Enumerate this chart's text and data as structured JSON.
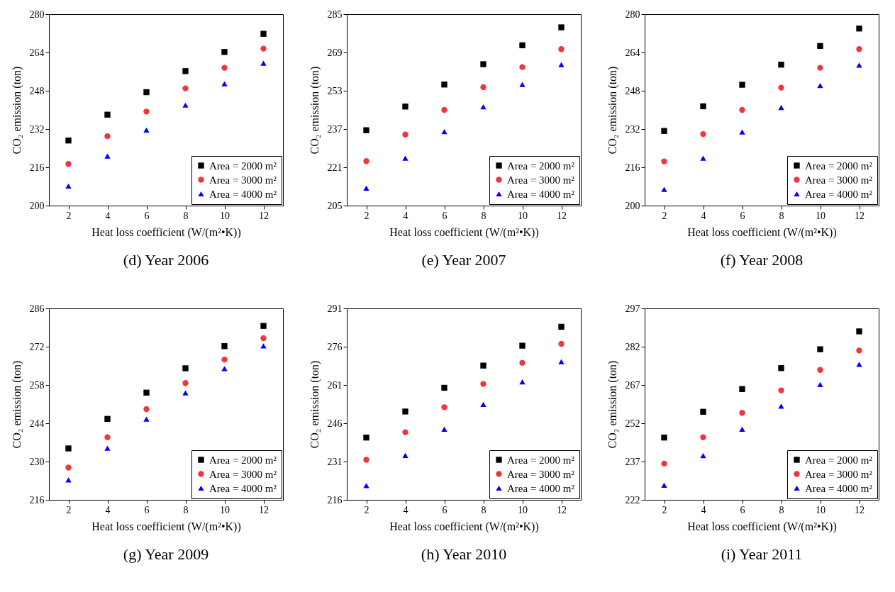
{
  "chart_data": [
    {
      "type": "scatter",
      "title": "(d) Year 2006",
      "xlabel": "Heat loss coefficient (W/(m²•K))",
      "ylabel": "CO₂ emission (ton)",
      "x": [
        2,
        4,
        6,
        8,
        10,
        12
      ],
      "xlim": [
        1,
        13
      ],
      "xticks": [
        2,
        4,
        6,
        8,
        10,
        12
      ],
      "ylim": [
        200,
        280
      ],
      "yticks": [
        200,
        216,
        232,
        248,
        264,
        280
      ],
      "grid": false,
      "legend": "bottom right",
      "series": [
        {
          "name": "Area = 2000 m²",
          "color": "#000000",
          "marker": "square",
          "values": [
            227.2,
            238.0,
            247.4,
            256.2,
            264.2,
            271.8
          ]
        },
        {
          "name": "Area = 3000 m²",
          "color": "#f0363b",
          "marker": "circle",
          "values": [
            217.4,
            229.0,
            239.3,
            249.0,
            257.6,
            265.6
          ]
        },
        {
          "name": "Area = 4000 m²",
          "color": "#0000ff",
          "marker": "triangle",
          "values": [
            208.2,
            220.7,
            231.6,
            242.0,
            250.9,
            259.5
          ]
        }
      ]
    },
    {
      "type": "scatter",
      "title": "(e) Year 2007",
      "xlabel": "Heat loss coefficient (W/(m²•K))",
      "ylabel": "CO₂ emission (ton)",
      "x": [
        2,
        4,
        6,
        8,
        10,
        12
      ],
      "xlim": [
        1,
        13
      ],
      "xticks": [
        2,
        4,
        6,
        8,
        10,
        12
      ],
      "ylim": [
        205,
        285
      ],
      "yticks": [
        205,
        221,
        237,
        253,
        269,
        285
      ],
      "grid": false,
      "legend": "bottom right",
      "series": [
        {
          "name": "Area = 2000 m²",
          "color": "#000000",
          "marker": "square",
          "values": [
            236.5,
            246.4,
            255.6,
            264.1,
            272.0,
            279.5
          ]
        },
        {
          "name": "Area = 3000 m²",
          "color": "#f0363b",
          "marker": "circle",
          "values": [
            223.6,
            234.7,
            245.0,
            254.5,
            262.9,
            270.4
          ]
        },
        {
          "name": "Area = 4000 m²",
          "color": "#0000ff",
          "marker": "triangle",
          "values": [
            212.3,
            224.8,
            235.9,
            246.3,
            255.6,
            263.9
          ]
        }
      ]
    },
    {
      "type": "scatter",
      "title": "(f) Year 2008",
      "xlabel": "Heat loss coefficient (W/(m²•K))",
      "ylabel": "CO₂ emission (ton)",
      "x": [
        2,
        4,
        6,
        8,
        10,
        12
      ],
      "xlim": [
        1,
        13
      ],
      "xticks": [
        2,
        4,
        6,
        8,
        10,
        12
      ],
      "ylim": [
        200,
        280
      ],
      "yticks": [
        200,
        216,
        232,
        248,
        264,
        280
      ],
      "grid": false,
      "legend": "bottom right",
      "series": [
        {
          "name": "Area = 2000 m²",
          "color": "#000000",
          "marker": "square",
          "values": [
            231.2,
            241.5,
            250.5,
            258.9,
            266.7,
            274.0
          ]
        },
        {
          "name": "Area = 3000 m²",
          "color": "#f0363b",
          "marker": "circle",
          "values": [
            218.5,
            229.9,
            240.0,
            249.3,
            257.6,
            265.4
          ]
        },
        {
          "name": "Area = 4000 m²",
          "color": "#0000ff",
          "marker": "triangle",
          "values": [
            206.8,
            219.8,
            230.8,
            241.0,
            250.2,
            258.7
          ]
        }
      ]
    },
    {
      "type": "scatter",
      "title": "(g) Year 2009",
      "xlabel": "Heat loss coefficient (W/(m²•K))",
      "ylabel": "CO₂ emission (ton)",
      "x": [
        2,
        4,
        6,
        8,
        10,
        12
      ],
      "xlim": [
        1,
        13
      ],
      "xticks": [
        2,
        4,
        6,
        8,
        10,
        12
      ],
      "ylim": [
        216,
        286
      ],
      "yticks": [
        216,
        230,
        244,
        258,
        272,
        286
      ],
      "grid": false,
      "legend": "bottom right",
      "series": [
        {
          "name": "Area = 2000 m²",
          "color": "#000000",
          "marker": "square",
          "values": [
            234.8,
            245.6,
            255.2,
            264.1,
            272.2,
            279.6
          ]
        },
        {
          "name": "Area = 3000 m²",
          "color": "#f0363b",
          "marker": "circle",
          "values": [
            227.8,
            238.9,
            249.2,
            258.7,
            267.3,
            275.1
          ]
        },
        {
          "name": "Area = 4000 m²",
          "color": "#0000ff",
          "marker": "triangle",
          "values": [
            223.3,
            234.9,
            245.5,
            255.1,
            264.0,
            272.3
          ]
        }
      ]
    },
    {
      "type": "scatter",
      "title": "(h) Year 2010",
      "xlabel": "Heat loss coefficient (W/(m²•K))",
      "ylabel": "CO₂ emission (ton)",
      "x": [
        2,
        4,
        6,
        8,
        10,
        12
      ],
      "xlim": [
        1,
        13
      ],
      "xticks": [
        2,
        4,
        6,
        8,
        10,
        12
      ],
      "ylim": [
        216,
        291
      ],
      "yticks": [
        216,
        231,
        246,
        261,
        276,
        291
      ],
      "grid": false,
      "legend": "bottom right",
      "series": [
        {
          "name": "Area = 2000 m²",
          "color": "#000000",
          "marker": "square",
          "values": [
            240.4,
            250.6,
            259.9,
            268.6,
            276.4,
            283.8
          ]
        },
        {
          "name": "Area = 3000 m²",
          "color": "#f0363b",
          "marker": "circle",
          "values": [
            231.7,
            242.5,
            252.3,
            261.4,
            269.7,
            277.1
          ]
        },
        {
          "name": "Area = 4000 m²",
          "color": "#0000ff",
          "marker": "triangle",
          "values": [
            221.6,
            233.4,
            243.7,
            253.4,
            262.2,
            270.1
          ]
        }
      ]
    },
    {
      "type": "scatter",
      "title": "(i) Year 2011",
      "xlabel": "Heat loss coefficient (W/(m²•K))",
      "ylabel": "CO₂ emission (ton)",
      "x": [
        2,
        4,
        6,
        8,
        10,
        12
      ],
      "xlim": [
        1,
        13
      ],
      "xticks": [
        2,
        4,
        6,
        8,
        10,
        12
      ],
      "ylim": [
        222,
        297
      ],
      "yticks": [
        222,
        237,
        252,
        267,
        282,
        297
      ],
      "grid": false,
      "legend": "bottom right",
      "series": [
        {
          "name": "Area = 2000 m²",
          "color": "#000000",
          "marker": "square",
          "values": [
            246.4,
            256.5,
            265.4,
            273.6,
            281.0,
            288.0
          ]
        },
        {
          "name": "Area = 3000 m²",
          "color": "#f0363b",
          "marker": "circle",
          "values": [
            236.2,
            246.5,
            256.1,
            264.9,
            272.9,
            280.5
          ]
        },
        {
          "name": "Area = 4000 m²",
          "color": "#0000ff",
          "marker": "triangle",
          "values": [
            227.7,
            239.3,
            249.7,
            258.7,
            267.2,
            275.1
          ]
        }
      ]
    }
  ]
}
